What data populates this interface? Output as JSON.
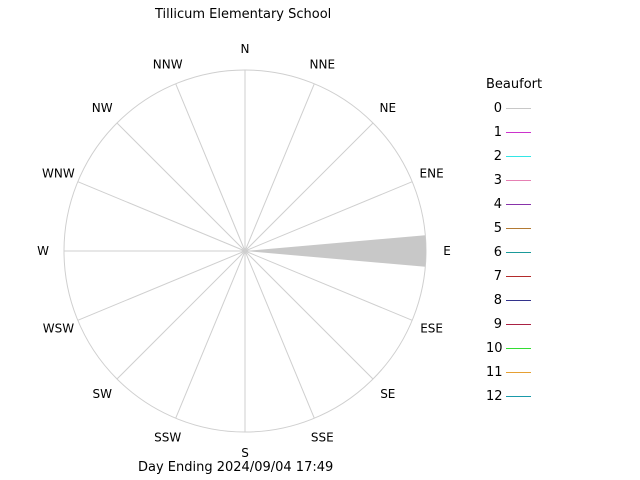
{
  "title": "Tillicum Elementary School",
  "footer": "Day Ending 2024/09/04 17:49",
  "legend": {
    "title": "Beaufort",
    "items": [
      {
        "label": "0",
        "color": "#c8c8c8"
      },
      {
        "label": "1",
        "color": "#cc33cc"
      },
      {
        "label": "2",
        "color": "#33e6e6"
      },
      {
        "label": "3",
        "color": "#e680b3"
      },
      {
        "label": "4",
        "color": "#8833aa"
      },
      {
        "label": "5",
        "color": "#b37a33"
      },
      {
        "label": "6",
        "color": "#1a9a9a"
      },
      {
        "label": "7",
        "color": "#b32b2b"
      },
      {
        "label": "8",
        "color": "#33338c"
      },
      {
        "label": "9",
        "color": "#aa2244"
      },
      {
        "label": "10",
        "color": "#33dd33"
      },
      {
        "label": "11",
        "color": "#e6a033"
      },
      {
        "label": "12",
        "color": "#1a9aaa"
      }
    ]
  },
  "chart_data": {
    "type": "wind-rose",
    "directions": [
      "N",
      "NNE",
      "NE",
      "ENE",
      "E",
      "ESE",
      "SE",
      "SSE",
      "S",
      "SSW",
      "SW",
      "WSW",
      "W",
      "WNW",
      "NW",
      "NNW"
    ],
    "series": [
      {
        "name": "0",
        "color": "#c8c8c8",
        "values": [
          0,
          0,
          0,
          0,
          1.0,
          0,
          0,
          0,
          0,
          0,
          0,
          0,
          0,
          0,
          0,
          0
        ]
      }
    ],
    "grid": true
  }
}
